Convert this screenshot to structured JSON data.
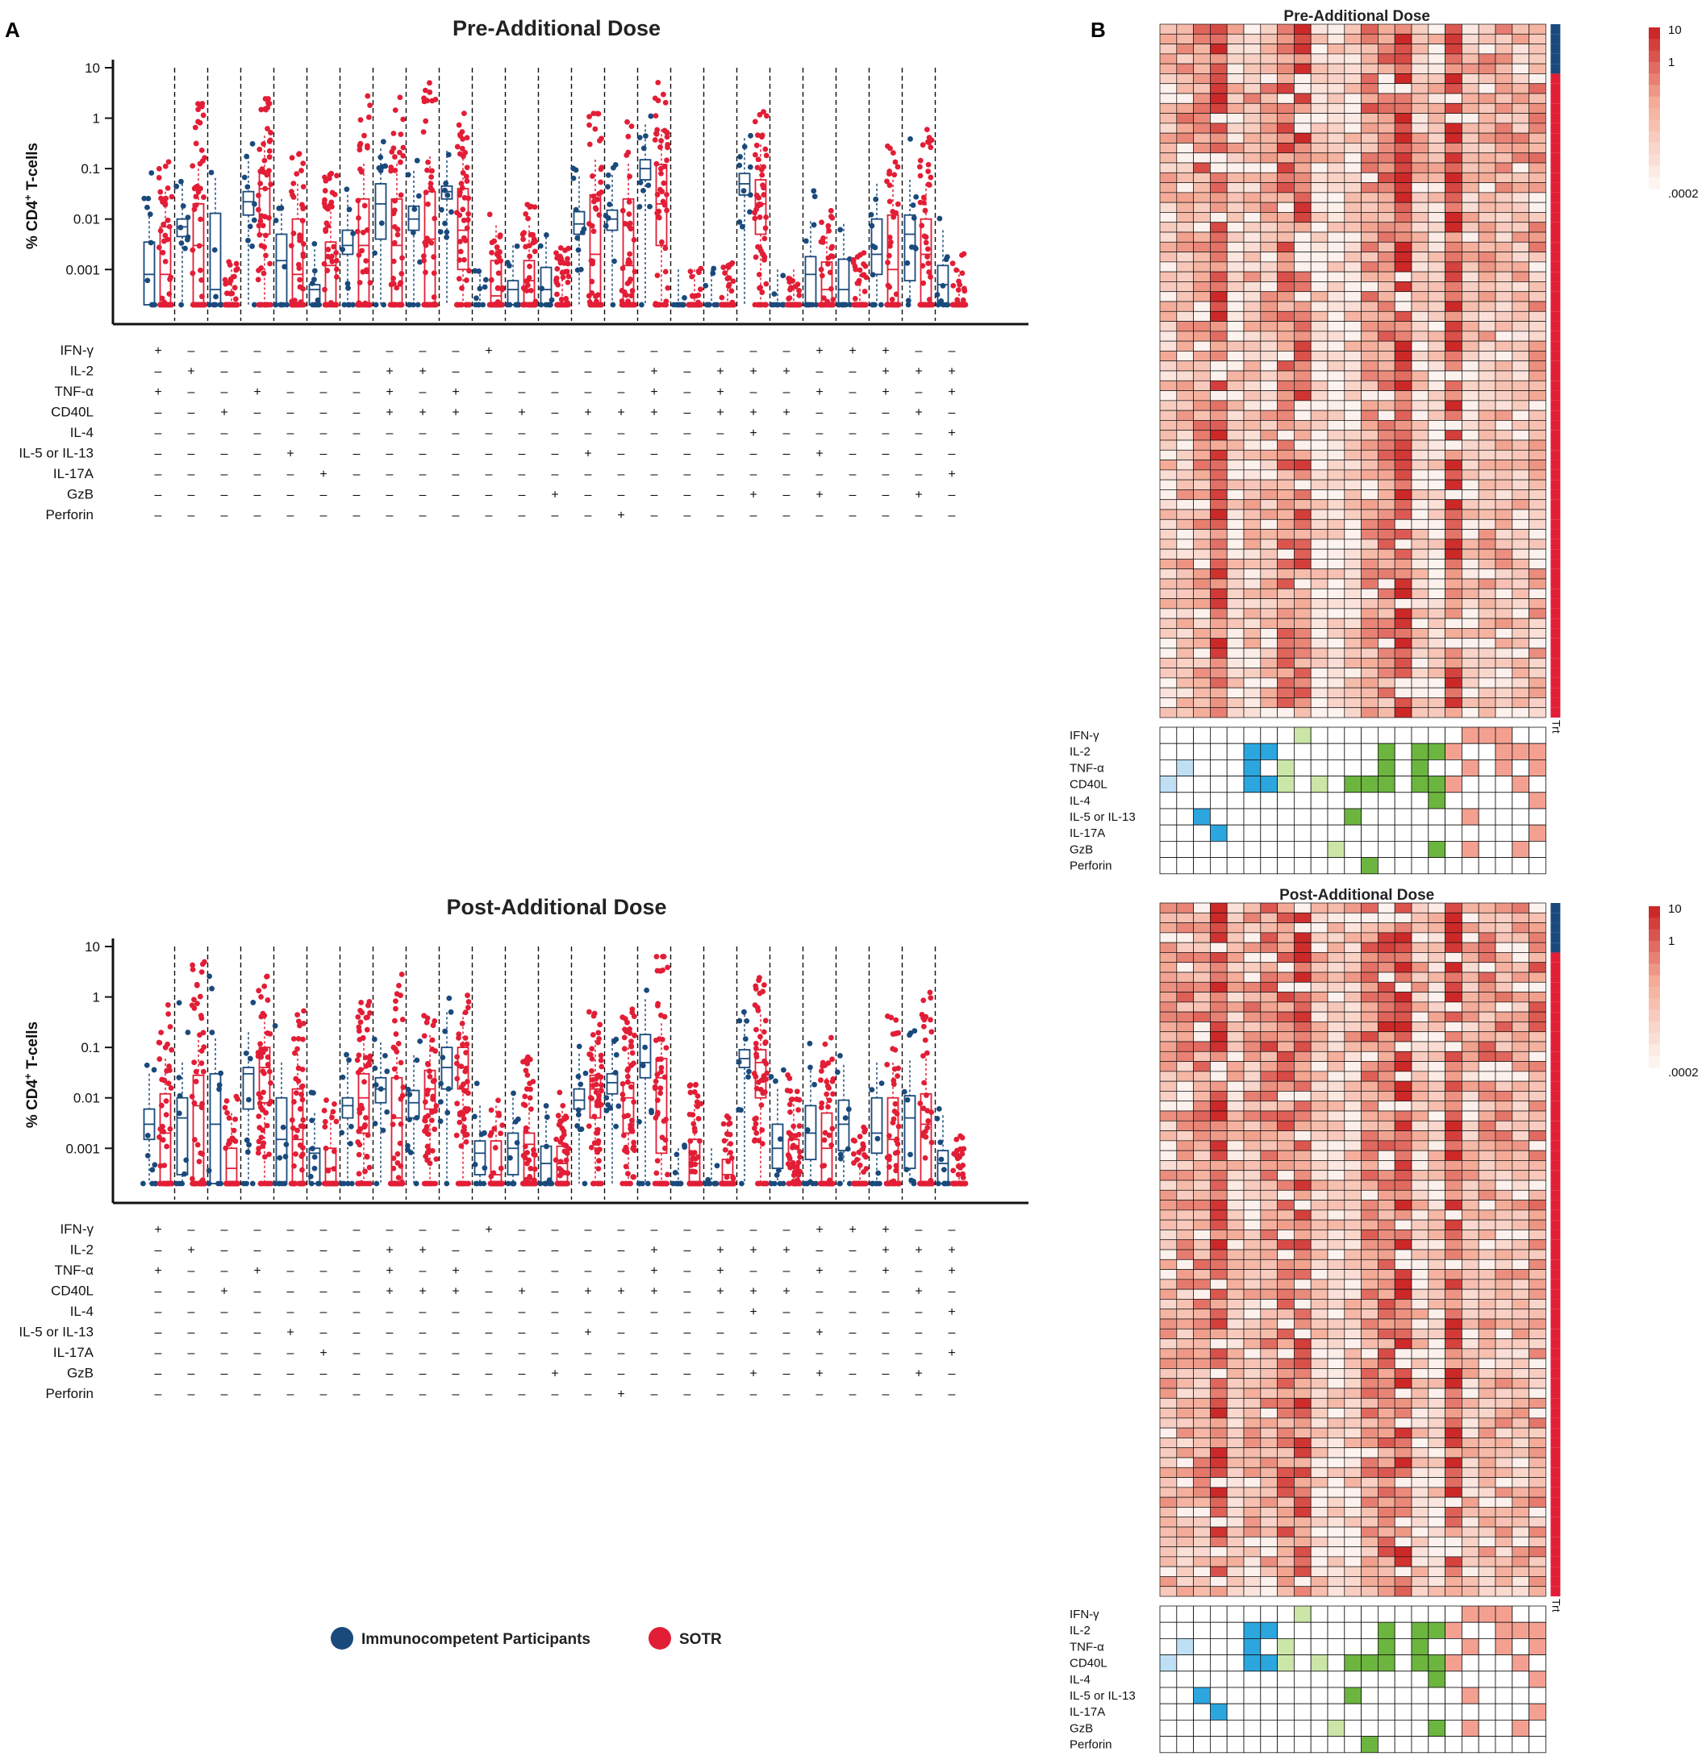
{
  "panels": {
    "a": "A",
    "b": "B"
  },
  "colors": {
    "ic": "#1a4a7c",
    "sotr": "#e21e36",
    "hm_light": "#fdf0ec",
    "hm_dark": "#d72b2b",
    "c_blue_light": "#bfe0f4",
    "c_blue": "#2ca6df",
    "c_green_light": "#cbe6a7",
    "c_green": "#6cb53e",
    "c_salmon": "#f4a091"
  },
  "legend": {
    "ic": "Immunocompetent Participants",
    "sotr": "SOTR"
  },
  "chart_data": [
    {
      "type": "box-scatter",
      "title": "Pre-Additional Dose",
      "ylabel": "% CD4+ T-cells",
      "ylabel_main": "% CD4",
      "ylabel_sup": "+",
      "ylabel_rest": " T-cells",
      "yscale": "log",
      "ylim": [
        0.0002,
        10
      ],
      "yticks": [
        "10",
        "1",
        "0.1",
        "0.01",
        "0.001"
      ],
      "ytick_values": [
        10,
        1,
        0.1,
        0.01,
        0.001
      ],
      "series": [
        {
          "name": "Immunocompetent Participants",
          "color": "#1a4a7c",
          "median": [
            0.0008,
            0.007,
            0.0004,
            0.022,
            0.0015,
            0.0004,
            0.003,
            0.02,
            0.01,
            0.035,
            0.0002,
            0.0004,
            0.0004,
            0.008,
            0.01,
            0.1,
            0.0002,
            0.0002,
            0.05,
            0.0002,
            0.0008,
            0.0004,
            0.002,
            0.005,
            0.0005
          ],
          "q1": [
            0.0002,
            0.0045,
            0.0002,
            0.012,
            0.0002,
            0.0002,
            0.002,
            0.004,
            0.006,
            0.025,
            0.0002,
            0.0002,
            0.0002,
            0.005,
            0.006,
            0.06,
            0.0002,
            0.0002,
            0.03,
            0.0002,
            0.0002,
            0.0002,
            0.0008,
            0.0006,
            0.0002
          ],
          "q3": [
            0.0035,
            0.01,
            0.013,
            0.035,
            0.005,
            0.0005,
            0.006,
            0.05,
            0.018,
            0.045,
            0.0002,
            0.0006,
            0.0011,
            0.014,
            0.015,
            0.15,
            0.0002,
            0.0002,
            0.08,
            0.0002,
            0.0018,
            0.0016,
            0.01,
            0.012,
            0.0012
          ]
        },
        {
          "name": "SOTR",
          "color": "#e21e36",
          "median": [
            0.0008,
            0.003,
            0.0002,
            0.04,
            0.0008,
            0.0012,
            0.003,
            0.003,
            0.004,
            0.006,
            0.0003,
            0.0006,
            0.0004,
            0.002,
            0.0012,
            0.02,
            0.0002,
            0.0002,
            0.02,
            0.0002,
            0.0004,
            0.0003,
            0.001,
            0.002,
            0.0003
          ],
          "q1": [
            0.0002,
            0.0002,
            0.0002,
            0.005,
            0.0002,
            0.0002,
            0.0002,
            0.0002,
            0.0002,
            0.001,
            0.0002,
            0.0002,
            0.0002,
            0.0002,
            0.0002,
            0.003,
            0.0002,
            0.0002,
            0.005,
            0.0002,
            0.0002,
            0.0002,
            0.0002,
            0.0002,
            0.0002
          ],
          "q3": [
            0.007,
            0.02,
            0.0002,
            0.09,
            0.01,
            0.0035,
            0.025,
            0.025,
            0.035,
            0.04,
            0.0015,
            0.0015,
            0.0002,
            0.03,
            0.025,
            0.12,
            0.0002,
            0.0002,
            0.06,
            0.0002,
            0.0014,
            0.0002,
            0.012,
            0.01,
            0.0002
          ]
        }
      ],
      "markers": {
        "rows": [
          "IFN-γ",
          "IL-2",
          "TNF-α",
          "CD40L",
          "IL-4",
          "IL-5 or IL-13",
          "IL-17A",
          "GzB",
          "Perforin"
        ],
        "pattern": [
          "+000000000+000000000+++00",
          "0+00000++000000+0+++00+++",
          "+00+000+0+00000+0+00+0+0+",
          "00+0000+++0+0+++0+++000+0",
          "000000000000000000+00000+",
          "0000+00000000+000000+0000",
          "00000+000000000000000000+",
          "000000000000+00000+0+00+0",
          "00000000000000+0000000000"
        ]
      }
    },
    {
      "type": "box-scatter",
      "title": "Post-Additional Dose",
      "ylabel": "% CD4+ T-cells",
      "ylabel_main": "% CD4",
      "ylabel_sup": "+",
      "ylabel_rest": " T-cells",
      "yscale": "log",
      "ylim": [
        0.0002,
        10
      ],
      "yticks": [
        "10",
        "1",
        "0.1",
        "0.01",
        "0.001"
      ],
      "ytick_values": [
        10,
        1,
        0.1,
        0.01,
        0.001
      ],
      "series": [
        {
          "name": "Immunocompetent Participants",
          "color": "#1a4a7c",
          "median": [
            0.003,
            0.004,
            0.003,
            0.03,
            0.0015,
            0.0008,
            0.007,
            0.015,
            0.008,
            0.04,
            0.0008,
            0.001,
            0.0005,
            0.009,
            0.02,
            0.05,
            0.0002,
            0.0002,
            0.06,
            0.001,
            0.002,
            0.003,
            0.002,
            0.004,
            0.0005
          ],
          "q1": [
            0.0015,
            0.0003,
            0.0002,
            0.006,
            0.0002,
            0.0002,
            0.004,
            0.008,
            0.004,
            0.015,
            0.0003,
            0.0003,
            0.0002,
            0.006,
            0.012,
            0.025,
            0.0002,
            0.0002,
            0.04,
            0.0004,
            0.0006,
            0.0009,
            0.0008,
            0.0004,
            0.0002
          ],
          "q3": [
            0.006,
            0.01,
            0.03,
            0.04,
            0.01,
            0.001,
            0.01,
            0.025,
            0.014,
            0.1,
            0.0014,
            0.002,
            0.0011,
            0.015,
            0.03,
            0.18,
            0.0002,
            0.0002,
            0.09,
            0.003,
            0.007,
            0.009,
            0.01,
            0.011,
            0.0009
          ]
        },
        {
          "name": "SOTR",
          "color": "#e21e36",
          "median": [
            0.002,
            0.007,
            0.0004,
            0.04,
            0.0015,
            0.0004,
            0.01,
            0.004,
            0.015,
            0.04,
            0.0003,
            0.0012,
            0.0005,
            0.015,
            0.01,
            0.025,
            0.0005,
            0.0003,
            0.05,
            0.0015,
            0.001,
            0.0004,
            0.0015,
            0.003,
            0.0003
          ],
          "q1": [
            0.0002,
            0.0002,
            0.0002,
            0.008,
            0.0002,
            0.0002,
            0.002,
            0.0002,
            0.006,
            0.015,
            0.0002,
            0.0002,
            0.0002,
            0.004,
            0.002,
            0.0008,
            0.0002,
            0.0002,
            0.01,
            0.0004,
            0.0002,
            0.0002,
            0.0002,
            0.0002,
            0.0002
          ],
          "q3": [
            0.012,
            0.028,
            0.001,
            0.1,
            0.015,
            0.001,
            0.03,
            0.025,
            0.035,
            0.1,
            0.0014,
            0.002,
            0.0011,
            0.028,
            0.02,
            0.06,
            0.0015,
            0.0006,
            0.09,
            0.0015,
            0.005,
            0.0002,
            0.01,
            0.012,
            0.0002
          ]
        }
      ],
      "markers": {
        "rows": [
          "IFN-γ",
          "IL-2",
          "TNF-α",
          "CD40L",
          "IL-4",
          "IL-5 or IL-13",
          "IL-17A",
          "GzB",
          "Perforin"
        ],
        "pattern": [
          "+000000000+000000000+++00",
          "0+00000++000000+0+++00+++",
          "+00+000+0+00000+0+00+0+0+",
          "00+0000+++0+0+++0+++000+0",
          "000000000000000000+00000+",
          "0000+00000000+000000+0000",
          "00000+000000000000000000+",
          "000000000000+00000+0+00+0",
          "00000000000000+0000000000"
        ]
      }
    },
    {
      "type": "heatmap",
      "title": "Pre-Additional Dose",
      "colorbar": {
        "ticks": [
          "10",
          "1",
          ".0002"
        ],
        "range": [
          0.0002,
          10
        ]
      },
      "trt_label": "Trt",
      "n_rows": 70,
      "n_cols": 23,
      "n_ic_rows": 5,
      "combination_rows": [
        "IFN-γ",
        "IL-2",
        "TNF-α",
        "CD40L",
        "IL-4",
        "IL-5 or IL-13",
        "IL-17A",
        "GzB",
        "Perforin"
      ],
      "column_intensity": [
        0.35,
        0.45,
        0.55,
        0.85,
        0.3,
        0.4,
        0.5,
        0.65,
        0.75,
        0.25,
        0.2,
        0.3,
        0.55,
        0.65,
        0.9,
        0.3,
        0.25,
        0.85,
        0.35,
        0.45,
        0.45,
        0.4,
        0.5
      ]
    },
    {
      "type": "heatmap",
      "title": "Post-Additional Dose",
      "colorbar": {
        "ticks": [
          "10",
          "1",
          ".0002"
        ],
        "range": [
          0.0002,
          10
        ]
      },
      "trt_label": "Trt",
      "n_rows": 70,
      "n_cols": 23,
      "n_ic_rows": 5,
      "combination_rows": [
        "IFN-γ",
        "IL-2",
        "TNF-α",
        "CD40L",
        "IL-4",
        "IL-5 or IL-13",
        "IL-17A",
        "GzB",
        "Perforin"
      ],
      "column_intensity": [
        0.45,
        0.5,
        0.55,
        0.85,
        0.35,
        0.45,
        0.6,
        0.7,
        0.8,
        0.3,
        0.25,
        0.35,
        0.6,
        0.7,
        0.9,
        0.35,
        0.3,
        0.85,
        0.4,
        0.5,
        0.5,
        0.45,
        0.55
      ]
    }
  ]
}
